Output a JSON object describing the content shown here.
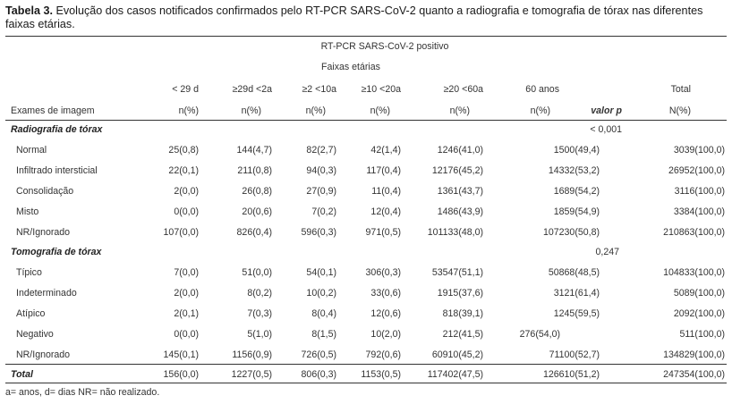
{
  "caption": {
    "label": "Tabela 3.",
    "text": " Evolução dos casos notificados confirmados pelo RT-PCR SARS-CoV-2 quanto a radiografia e tomografia de tórax nas diferentes faixas etárias."
  },
  "header": {
    "group": "RT-PCR SARS-CoV-2 positivo",
    "subgroup": "Faixas etárias",
    "age_cols": [
      "< 29 d",
      "≥29d <2a",
      "≥2 <10a",
      "≥10 <20a",
      "≥20 <60a",
      "60 anos"
    ],
    "total_col": "Total",
    "row_label": "Exames de imagem",
    "units": [
      "n(%)",
      "n(%)",
      "n(%)",
      "n(%)",
      "n(%)",
      "n(%)"
    ],
    "pvalue_col": "valor p",
    "total_unit": "N(%)"
  },
  "sections": [
    {
      "title": "Radiografia de tórax",
      "pvalue": "< 0,001",
      "rows": [
        {
          "label": "Normal",
          "cells": [
            "25(0,8)",
            "144(4,7)",
            "82(2,7)",
            "42(1,4)",
            "1246(41,0)",
            "1500(49,4)"
          ],
          "total": "3039(100,0)"
        },
        {
          "label": "Infiltrado intersticial",
          "cells": [
            "22(0,1)",
            "211(0,8)",
            "94(0,3)",
            "117(0,4)",
            "12176(45,2)",
            "14332(53,2)"
          ],
          "total": "26952(100,0)"
        },
        {
          "label": "Consolidação",
          "cells": [
            "2(0,0)",
            "26(0,8)",
            "27(0,9)",
            "11(0,4)",
            "1361(43,7)",
            "1689(54,2)"
          ],
          "total": "3116(100,0)"
        },
        {
          "label": "Misto",
          "cells": [
            "0(0,0)",
            "20(0,6)",
            "7(0,2)",
            "12(0,4)",
            "1486(43,9)",
            "1859(54,9)"
          ],
          "total": "3384(100,0)"
        },
        {
          "label": "NR/Ignorado",
          "cells": [
            "107(0,0)",
            "826(0,4)",
            "596(0,3)",
            "971(0,5)",
            "101133(48,0)",
            "107230(50,8)"
          ],
          "total": "210863(100,0)"
        }
      ]
    },
    {
      "title": "Tomografia de tórax",
      "pvalue": "0,247",
      "rows": [
        {
          "label": "Típico",
          "cells": [
            "7(0,0)",
            "51(0,0)",
            "54(0,1)",
            "306(0,3)",
            "53547(51,1)",
            "50868(48,5)"
          ],
          "total": "104833(100,0)"
        },
        {
          "label": "Indeterminado",
          "cells": [
            "2(0,0)",
            "8(0,2)",
            "10(0,2)",
            "33(0,6)",
            "1915(37,6)",
            "3121(61,4)"
          ],
          "total": "5089(100,0)"
        },
        {
          "label": "Atípico",
          "cells": [
            "2(0,1)",
            "7(0,3)",
            "8(0,4)",
            "12(0,6)",
            "818(39,1)",
            "1245(59,5)"
          ],
          "total": "2092(100,0)"
        },
        {
          "label": "Negativo",
          "cells": [
            "0(0,0)",
            "5(1,0)",
            "8(1,5)",
            "10(2,0)",
            "212(41,5)",
            "276(54,0)"
          ],
          "total": "511(100,0)"
        },
        {
          "label": "NR/Ignorado",
          "cells": [
            "145(0,1)",
            "1156(0,9)",
            "726(0,5)",
            "792(0,6)",
            "60910(45,2)",
            "71100(52,7)"
          ],
          "total": "134829(100,0)"
        }
      ]
    }
  ],
  "total_row": {
    "label": "Total",
    "cells": [
      "156(0,0)",
      "1227(0,5)",
      "806(0,3)",
      "1153(0,5)",
      "117402(47,5)",
      "126610(51,2)"
    ],
    "total": "247354(100,0)"
  },
  "footnote": "a= anos, d= dias NR= não realizado."
}
